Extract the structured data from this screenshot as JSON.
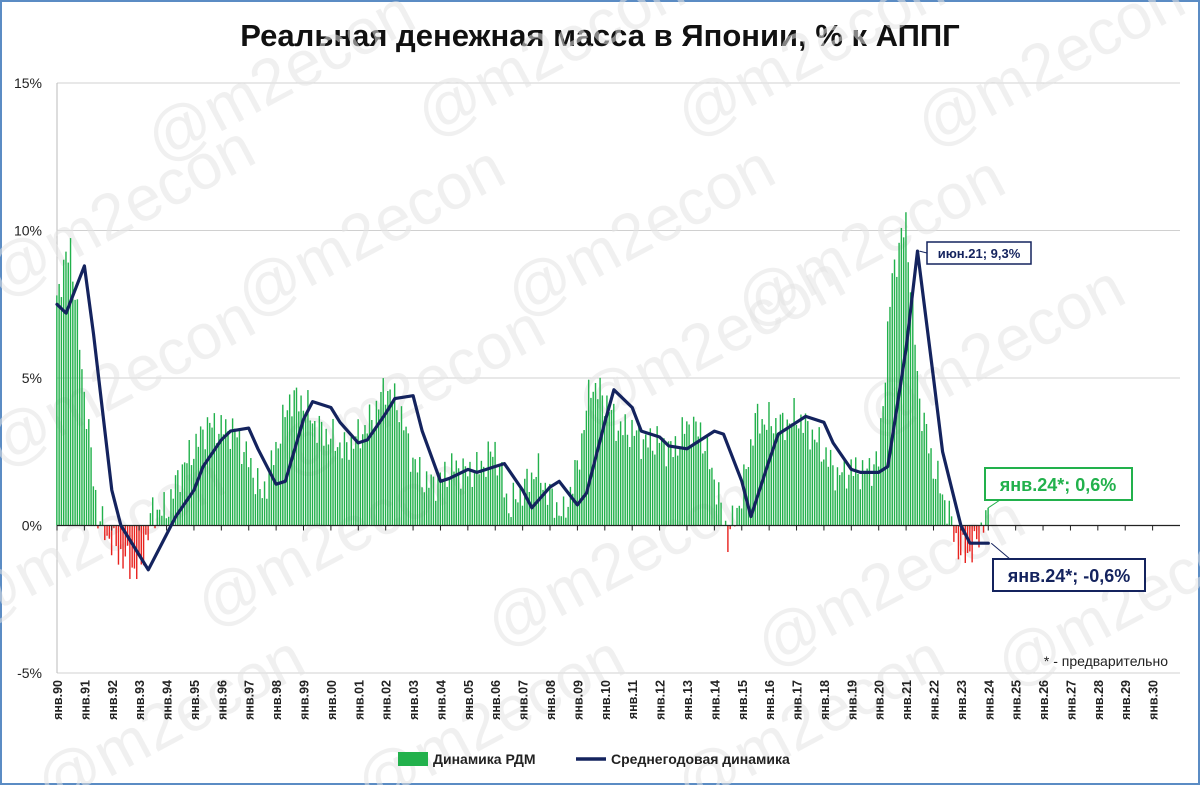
{
  "chart_data": {
    "type": "bar+line",
    "title": "Реальная денежная масса в Японии, % к АППГ",
    "ylim": [
      -5,
      15
    ],
    "yticks": [
      "15%",
      "10%",
      "5%",
      "0%",
      "-5%"
    ],
    "ytick_values": [
      15,
      10,
      5,
      0,
      -5
    ],
    "x_start": "янв.90",
    "x_end": "янв.31",
    "x_ticks": [
      "янв.90",
      "янв.91",
      "янв.92",
      "янв.93",
      "янв.94",
      "янв.95",
      "янв.96",
      "янв.97",
      "янв.98",
      "янв.99",
      "янв.00",
      "янв.01",
      "янв.02",
      "янв.03",
      "янв.04",
      "янв.05",
      "янв.06",
      "янв.07",
      "янв.08",
      "янв.09",
      "янв.10",
      "янв.11",
      "янв.12",
      "янв.13",
      "янв.14",
      "янв.15",
      "янв.16",
      "янв.17",
      "янв.18",
      "янв.19",
      "янв.20",
      "янв.21",
      "янв.22",
      "янв.23",
      "янв.24",
      "янв.25",
      "янв.26",
      "янв.27",
      "янв.28",
      "янв.29",
      "янв.30"
    ],
    "grid": true,
    "legend_position": "bottom",
    "bar_series": {
      "name": "Динамика РДМ",
      "color_positive": "#22b14c",
      "color_negative": "#e8231f",
      "points": [
        [
          "янв.90",
          7.8
        ],
        [
          "июл.90",
          9.5
        ],
        [
          "янв.91",
          4.5
        ],
        [
          "июл.91",
          0.3
        ],
        [
          "янв.92",
          -0.6
        ],
        [
          "июл.92",
          -1.2
        ],
        [
          "янв.93",
          -1.6
        ],
        [
          "июл.93",
          0.5
        ],
        [
          "янв.94",
          0.5
        ],
        [
          "июл.94",
          1.8
        ],
        [
          "янв.95",
          2.6
        ],
        [
          "июл.95",
          3.4
        ],
        [
          "янв.96",
          3.3
        ],
        [
          "июл.96",
          3.2
        ],
        [
          "янв.97",
          2.2
        ],
        [
          "июл.97",
          1.0
        ],
        [
          "янв.98",
          2.6
        ],
        [
          "июл.98",
          4.3
        ],
        [
          "янв.99",
          4.2
        ],
        [
          "июл.99",
          3.3
        ],
        [
          "янв.00",
          3.0
        ],
        [
          "июл.00",
          2.6
        ],
        [
          "янв.01",
          3.0
        ],
        [
          "июл.01",
          3.6
        ],
        [
          "янв.02",
          4.7
        ],
        [
          "июл.02",
          4.0
        ],
        [
          "янв.03",
          2.2
        ],
        [
          "июл.03",
          1.4
        ],
        [
          "янв.04",
          1.6
        ],
        [
          "июл.04",
          2.0
        ],
        [
          "янв.05",
          1.8
        ],
        [
          "июл.05",
          2.0
        ],
        [
          "янв.06",
          2.6
        ],
        [
          "июл.06",
          0.6
        ],
        [
          "янв.07",
          1.2
        ],
        [
          "июл.07",
          1.9
        ],
        [
          "янв.08",
          1.0
        ],
        [
          "июл.08",
          0.3
        ],
        [
          "янв.09",
          2.0
        ],
        [
          "июл.09",
          4.8
        ],
        [
          "янв.10",
          4.3
        ],
        [
          "июл.10",
          3.3
        ],
        [
          "янв.11",
          3.2
        ],
        [
          "июл.11",
          2.8
        ],
        [
          "янв.12",
          2.9
        ],
        [
          "июл.12",
          2.5
        ],
        [
          "янв.13",
          3.4
        ],
        [
          "июл.13",
          3.2
        ],
        [
          "янв.14",
          1.6
        ],
        [
          "июл.14",
          -0.4
        ],
        [
          "янв.15",
          1.0
        ],
        [
          "июл.15",
          3.6
        ],
        [
          "янв.16",
          3.5
        ],
        [
          "июл.16",
          3.4
        ],
        [
          "янв.17",
          3.7
        ],
        [
          "июл.17",
          3.2
        ],
        [
          "янв.18",
          2.5
        ],
        [
          "июл.18",
          1.7
        ],
        [
          "янв.19",
          1.9
        ],
        [
          "июл.19",
          1.8
        ],
        [
          "янв.20",
          2.2
        ],
        [
          "июл.20",
          8.5
        ],
        [
          "янв.21",
          10.3
        ],
        [
          "июл.21",
          4.2
        ],
        [
          "янв.22",
          2.0
        ],
        [
          "июл.22",
          0.6
        ],
        [
          "янв.23",
          -1.0
        ],
        [
          "июл.23",
          -0.8
        ],
        [
          "янв.24",
          0.6
        ]
      ]
    },
    "line_series": {
      "name": "Среднегодовая динамика",
      "color": "#14235e",
      "points": [
        [
          "янв.90",
          7.5
        ],
        [
          "май.90",
          7.2
        ],
        [
          "янв.91",
          8.8
        ],
        [
          "май.91",
          6.5
        ],
        [
          "янв.92",
          1.2
        ],
        [
          "май.92",
          0.0
        ],
        [
          "янв.93",
          -1.0
        ],
        [
          "май.93",
          -1.5
        ],
        [
          "янв.94",
          -0.3
        ],
        [
          "май.94",
          0.3
        ],
        [
          "янв.95",
          1.2
        ],
        [
          "май.95",
          2.0
        ],
        [
          "янв.96",
          2.9
        ],
        [
          "май.96",
          3.2
        ],
        [
          "янв.97",
          3.3
        ],
        [
          "май.97",
          2.6
        ],
        [
          "янв.98",
          1.4
        ],
        [
          "май.98",
          1.5
        ],
        [
          "янв.99",
          3.6
        ],
        [
          "май.99",
          4.2
        ],
        [
          "янв.00",
          4.0
        ],
        [
          "май.00",
          3.5
        ],
        [
          "янв.01",
          2.8
        ],
        [
          "май.01",
          2.9
        ],
        [
          "янв.02",
          3.8
        ],
        [
          "май.02",
          4.3
        ],
        [
          "янв.03",
          4.4
        ],
        [
          "май.03",
          3.2
        ],
        [
          "янв.04",
          1.5
        ],
        [
          "май.04",
          1.6
        ],
        [
          "янв.05",
          1.9
        ],
        [
          "май.05",
          1.8
        ],
        [
          "янв.06",
          2.0
        ],
        [
          "май.06",
          2.1
        ],
        [
          "янв.07",
          1.2
        ],
        [
          "май.07",
          0.6
        ],
        [
          "янв.08",
          1.3
        ],
        [
          "май.08",
          1.5
        ],
        [
          "янв.09",
          0.7
        ],
        [
          "май.09",
          1.1
        ],
        [
          "янв.10",
          3.5
        ],
        [
          "май.10",
          4.6
        ],
        [
          "янв.11",
          4.0
        ],
        [
          "май.11",
          3.2
        ],
        [
          "янв.12",
          3.0
        ],
        [
          "май.12",
          2.7
        ],
        [
          "янв.13",
          2.6
        ],
        [
          "май.13",
          2.8
        ],
        [
          "янв.14",
          3.2
        ],
        [
          "май.14",
          3.1
        ],
        [
          "янв.15",
          1.5
        ],
        [
          "май.15",
          0.3
        ],
        [
          "янв.16",
          2.2
        ],
        [
          "май.16",
          3.1
        ],
        [
          "янв.17",
          3.5
        ],
        [
          "май.17",
          3.7
        ],
        [
          "янв.18",
          3.5
        ],
        [
          "май.18",
          2.8
        ],
        [
          "янв.19",
          1.9
        ],
        [
          "май.19",
          1.8
        ],
        [
          "янв.20",
          1.8
        ],
        [
          "май.20",
          2.0
        ],
        [
          "янв.21",
          6.0
        ],
        [
          "июн.21",
          9.3
        ],
        [
          "янв.22",
          5.0
        ],
        [
          "май.22",
          2.5
        ],
        [
          "янв.23",
          0.0
        ],
        [
          "май.23",
          -0.6
        ],
        [
          "янв.24",
          -0.6
        ]
      ]
    },
    "annotations": [
      {
        "text": "июн.21; 9,3%",
        "series": "Среднегодовая динамика"
      },
      {
        "text": "янв.24*; 0,6%",
        "series": "Динамика РДМ"
      },
      {
        "text": "янв.24*; -0,6%",
        "series": "Среднегодовая динамика"
      }
    ],
    "footnote": "* - предварительно"
  },
  "watermark": "@m2econ"
}
